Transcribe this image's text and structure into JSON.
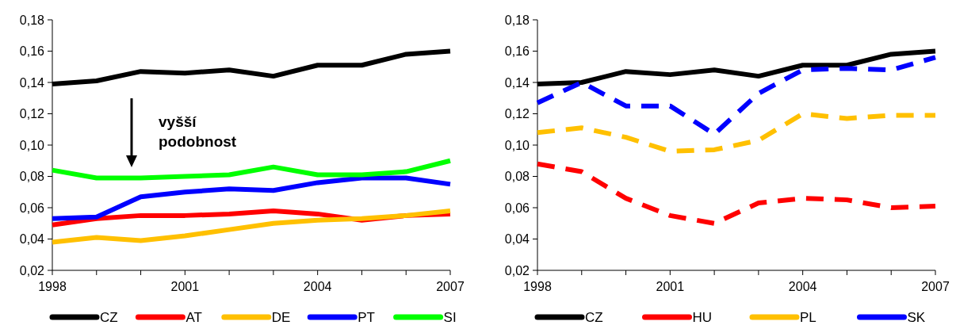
{
  "chart_data": [
    {
      "type": "line",
      "x": [
        1998,
        1999,
        2000,
        2001,
        2002,
        2003,
        2004,
        2005,
        2006,
        2007
      ],
      "xlim": [
        1998,
        2007
      ],
      "xticks": [
        1998,
        {
          "value": 1999,
          "label": null
        },
        {
          "value": 2000,
          "label": null
        },
        2001,
        {
          "value": 2002,
          "label": null
        },
        {
          "value": 2003,
          "label": null
        },
        2004,
        {
          "value": 2005,
          "label": null
        },
        {
          "value": 2006,
          "label": null
        },
        2007
      ],
      "ylim": [
        0.02,
        0.18
      ],
      "yticks": [
        {
          "value": 0.02,
          "label": "0,02"
        },
        {
          "value": 0.04,
          "label": "0,04"
        },
        {
          "value": 0.06,
          "label": "0,06"
        },
        {
          "value": 0.08,
          "label": "0,08"
        },
        {
          "value": 0.1,
          "label": "0,10"
        },
        {
          "value": 0.12,
          "label": "0,12"
        },
        {
          "value": 0.14,
          "label": "0,14"
        },
        {
          "value": 0.16,
          "label": "0,16"
        },
        {
          "value": 0.18,
          "label": "0,18"
        }
      ],
      "grid": false,
      "legend": "bottom",
      "line_style": "solid",
      "annotations": [
        "vyšší podobnost"
      ],
      "series": [
        {
          "name": "CZ",
          "color": "#000000",
          "values": [
            0.139,
            0.141,
            0.147,
            0.146,
            0.148,
            0.144,
            0.151,
            0.151,
            0.158,
            0.16
          ]
        },
        {
          "name": "AT",
          "color": "#ff0000",
          "values": [
            0.049,
            0.053,
            0.055,
            0.055,
            0.056,
            0.058,
            0.056,
            0.052,
            0.055,
            0.056
          ]
        },
        {
          "name": "DE",
          "color": "#ffc000",
          "values": [
            0.038,
            0.041,
            0.039,
            0.042,
            0.046,
            0.05,
            0.052,
            0.053,
            0.055,
            0.058
          ]
        },
        {
          "name": "PT",
          "color": "#0000ff",
          "values": [
            0.053,
            0.054,
            0.067,
            0.07,
            0.072,
            0.071,
            0.076,
            0.079,
            0.079,
            0.075
          ]
        },
        {
          "name": "SI",
          "color": "#00ff00",
          "values": [
            0.084,
            0.079,
            0.079,
            0.08,
            0.081,
            0.086,
            0.081,
            0.081,
            0.083,
            0.09
          ]
        }
      ]
    },
    {
      "type": "line",
      "x": [
        1998,
        1999,
        2000,
        2001,
        2002,
        2003,
        2004,
        2005,
        2006,
        2007
      ],
      "xlim": [
        1998,
        2007
      ],
      "xticks": [
        1998,
        {
          "value": 1999,
          "label": null
        },
        {
          "value": 2000,
          "label": null
        },
        2001,
        {
          "value": 2002,
          "label": null
        },
        {
          "value": 2003,
          "label": null
        },
        2004,
        {
          "value": 2005,
          "label": null
        },
        {
          "value": 2006,
          "label": null
        },
        2007
      ],
      "ylim": [
        0.02,
        0.18
      ],
      "yticks": [
        {
          "value": 0.02,
          "label": "0,02"
        },
        {
          "value": 0.04,
          "label": "0,04"
        },
        {
          "value": 0.06,
          "label": "0,06"
        },
        {
          "value": 0.08,
          "label": "0,08"
        },
        {
          "value": 0.1,
          "label": "0,10"
        },
        {
          "value": 0.12,
          "label": "0,12"
        },
        {
          "value": 0.14,
          "label": "0,14"
        },
        {
          "value": 0.16,
          "label": "0,16"
        },
        {
          "value": 0.18,
          "label": "0,18"
        }
      ],
      "grid": false,
      "legend": "bottom",
      "series": [
        {
          "name": "CZ",
          "color": "#000000",
          "line_style": "solid",
          "values": [
            0.139,
            0.14,
            0.147,
            0.145,
            0.148,
            0.144,
            0.151,
            0.151,
            0.158,
            0.16
          ]
        },
        {
          "name": "HU",
          "color": "#ff0000",
          "line_style": "dashed",
          "values": [
            0.088,
            0.083,
            0.066,
            0.055,
            0.05,
            0.063,
            0.066,
            0.065,
            0.06,
            0.061
          ]
        },
        {
          "name": "PL",
          "color": "#ffc000",
          "line_style": "dashed",
          "values": [
            0.108,
            0.111,
            0.105,
            0.096,
            0.097,
            0.103,
            0.12,
            0.117,
            0.119,
            0.119
          ]
        },
        {
          "name": "SK",
          "color": "#0000ff",
          "line_style": "dashed",
          "values": [
            0.127,
            0.14,
            0.125,
            0.125,
            0.107,
            0.133,
            0.148,
            0.149,
            0.148,
            0.156
          ]
        }
      ]
    }
  ]
}
